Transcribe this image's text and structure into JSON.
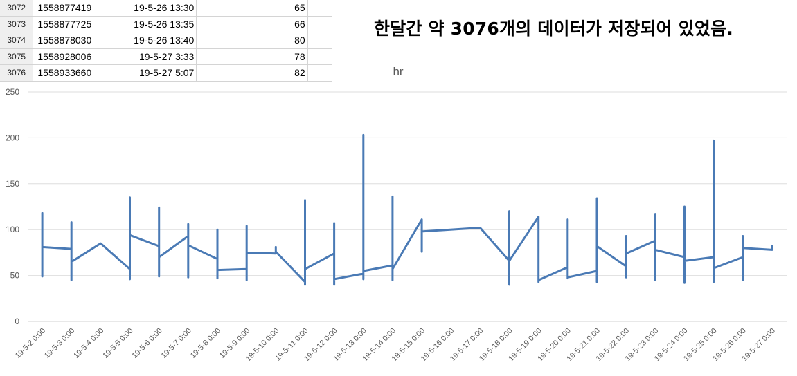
{
  "sheet": {
    "rows": [
      {
        "row": "3072",
        "timestamp": "1558877419",
        "datetime": "19-5-26 13:30",
        "hr": "65"
      },
      {
        "row": "3073",
        "timestamp": "1558877725",
        "datetime": "19-5-26 13:35",
        "hr": "66"
      },
      {
        "row": "3074",
        "timestamp": "1558878030",
        "datetime": "19-5-26 13:40",
        "hr": "80"
      },
      {
        "row": "3075",
        "timestamp": "1558928006",
        "datetime": "19-5-27 3:33",
        "hr": "78"
      },
      {
        "row": "3076",
        "timestamp": "1558933660",
        "datetime": "19-5-27 5:07",
        "hr": "82"
      }
    ]
  },
  "headline": "한달간 약 3076개의 데이터가 저장되어 있었음.",
  "chart_data": {
    "type": "line",
    "title": "hr",
    "xlabel": "",
    "ylabel": "",
    "ylim": [
      0,
      250
    ],
    "yticks": [
      0,
      50,
      100,
      150,
      200,
      250
    ],
    "grid": true,
    "legend": "none",
    "line_color": "#4a7ab5",
    "categories": [
      "19-5-2 0:00",
      "19-5-3 0:00",
      "19-5-4 0:00",
      "19-5-5 0:00",
      "19-5-6 0:00",
      "19-5-7 0:00",
      "19-5-8 0:00",
      "19-5-9 0:00",
      "19-5-10 0:00",
      "19-5-11 0:00",
      "19-5-12 0:00",
      "19-5-13 0:00",
      "19-5-14 0:00",
      "19-5-15 0:00",
      "19-5-16 0:00",
      "19-5-17 0:00",
      "19-5-18 0:00",
      "19-5-19 0:00",
      "19-5-20 0:00",
      "19-5-21 0:00",
      "19-5-22 0:00",
      "19-5-23 0:00",
      "19-5-24 0:00",
      "19-5-25 0:00",
      "19-5-26 0:00",
      "19-5-27 0:00"
    ],
    "series": [
      {
        "points": [
          {
            "x": 0,
            "y": 81
          },
          {
            "x": 0,
            "y": 118
          },
          {
            "x": 0,
            "y": 49
          },
          {
            "x": 0,
            "y": 81
          },
          {
            "x": 1,
            "y": 79
          },
          {
            "x": 1,
            "y": 108
          },
          {
            "x": 1,
            "y": 45
          },
          {
            "x": 1,
            "y": 65
          },
          {
            "x": 2,
            "y": 85
          },
          {
            "x": 3,
            "y": 57
          },
          {
            "x": 3,
            "y": 135
          },
          {
            "x": 3,
            "y": 46
          },
          {
            "x": 3,
            "y": 94
          },
          {
            "x": 4,
            "y": 82
          },
          {
            "x": 4,
            "y": 124
          },
          {
            "x": 4,
            "y": 49
          },
          {
            "x": 4,
            "y": 70
          },
          {
            "x": 5,
            "y": 93
          },
          {
            "x": 5,
            "y": 106
          },
          {
            "x": 5,
            "y": 48
          },
          {
            "x": 5,
            "y": 83
          },
          {
            "x": 6,
            "y": 68
          },
          {
            "x": 6,
            "y": 100
          },
          {
            "x": 6,
            "y": 47
          },
          {
            "x": 6,
            "y": 56
          },
          {
            "x": 7,
            "y": 57
          },
          {
            "x": 7,
            "y": 104
          },
          {
            "x": 7,
            "y": 45
          },
          {
            "x": 7,
            "y": 75
          },
          {
            "x": 8,
            "y": 74
          },
          {
            "x": 8,
            "y": 81
          },
          {
            "x": 8,
            "y": 76
          },
          {
            "x": 9,
            "y": 43
          },
          {
            "x": 9,
            "y": 132
          },
          {
            "x": 9,
            "y": 40
          },
          {
            "x": 9,
            "y": 57
          },
          {
            "x": 10,
            "y": 74
          },
          {
            "x": 10,
            "y": 107
          },
          {
            "x": 10,
            "y": 40
          },
          {
            "x": 10,
            "y": 46
          },
          {
            "x": 11,
            "y": 52
          },
          {
            "x": 11,
            "y": 203
          },
          {
            "x": 11,
            "y": 46
          },
          {
            "x": 11,
            "y": 55
          },
          {
            "x": 12,
            "y": 61
          },
          {
            "x": 12,
            "y": 136
          },
          {
            "x": 12,
            "y": 45
          },
          {
            "x": 12,
            "y": 57
          },
          {
            "x": 13,
            "y": 111
          },
          {
            "x": 13,
            "y": 76
          },
          {
            "x": 13,
            "y": 98
          },
          {
            "x": 15,
            "y": 102
          },
          {
            "x": 16,
            "y": 66
          },
          {
            "x": 16,
            "y": 120
          },
          {
            "x": 16,
            "y": 40
          },
          {
            "x": 16,
            "y": 66
          },
          {
            "x": 17,
            "y": 114
          },
          {
            "x": 17,
            "y": 43
          },
          {
            "x": 17,
            "y": 45
          },
          {
            "x": 18,
            "y": 59
          },
          {
            "x": 18,
            "y": 111
          },
          {
            "x": 18,
            "y": 47
          },
          {
            "x": 18,
            "y": 48
          },
          {
            "x": 19,
            "y": 55
          },
          {
            "x": 19,
            "y": 134
          },
          {
            "x": 19,
            "y": 43
          },
          {
            "x": 19,
            "y": 82
          },
          {
            "x": 20,
            "y": 60
          },
          {
            "x": 20,
            "y": 93
          },
          {
            "x": 20,
            "y": 48
          },
          {
            "x": 20,
            "y": 74
          },
          {
            "x": 21,
            "y": 88
          },
          {
            "x": 21,
            "y": 117
          },
          {
            "x": 21,
            "y": 45
          },
          {
            "x": 21,
            "y": 78
          },
          {
            "x": 22,
            "y": 70
          },
          {
            "x": 22,
            "y": 125
          },
          {
            "x": 22,
            "y": 42
          },
          {
            "x": 22,
            "y": 66
          },
          {
            "x": 23,
            "y": 70
          },
          {
            "x": 23,
            "y": 197
          },
          {
            "x": 23,
            "y": 43
          },
          {
            "x": 23,
            "y": 58
          },
          {
            "x": 24,
            "y": 70
          },
          {
            "x": 24,
            "y": 93
          },
          {
            "x": 24,
            "y": 45
          },
          {
            "x": 24,
            "y": 80
          },
          {
            "x": 25,
            "y": 78
          },
          {
            "x": 25,
            "y": 82
          }
        ]
      }
    ]
  }
}
